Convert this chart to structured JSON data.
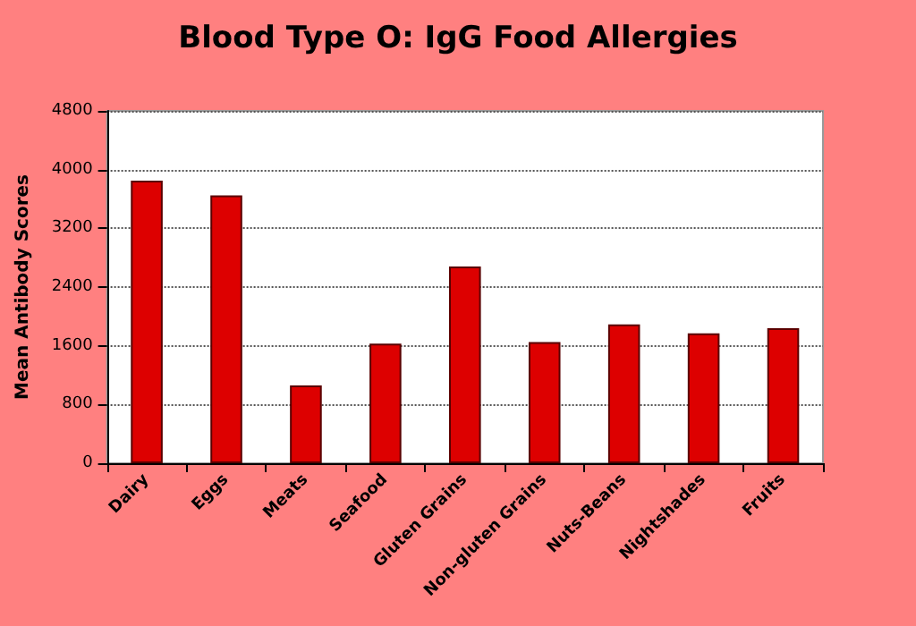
{
  "chart_data": {
    "type": "bar",
    "title": "Blood Type O: IgG Food Allergies",
    "ylabel": "Mean Antibody Scores",
    "categories": [
      "Dairy",
      "Eggs",
      "Meats",
      "Seafood",
      "Gluten Grains",
      "Non-gluten Grains",
      "Nuts-Beans",
      "Nightshades",
      "Fruits"
    ],
    "values": [
      3850,
      3650,
      1060,
      1630,
      2680,
      1650,
      1890,
      1770,
      1840
    ],
    "color": "#dd0000",
    "ylim": [
      0,
      4800
    ],
    "yticks": [
      0,
      800,
      1600,
      2400,
      3200,
      4000,
      4800
    ],
    "grid": "y"
  }
}
